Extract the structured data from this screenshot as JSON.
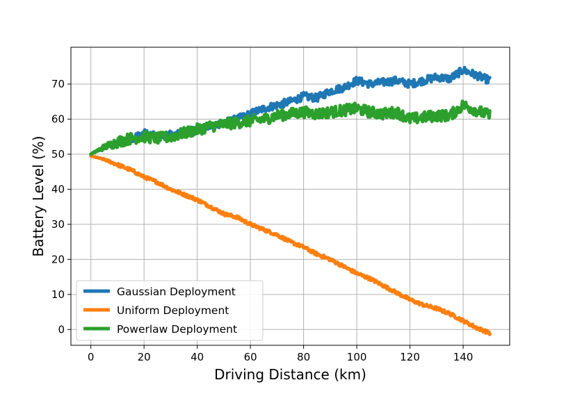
{
  "chart_data": {
    "type": "line",
    "title": "",
    "xlabel": "Driving Distance (km)",
    "ylabel": "Battery Level (%)",
    "xlim": [
      -7.5,
      157.5
    ],
    "ylim": [
      -4.5,
      80.5
    ],
    "xticks": [
      0,
      20,
      40,
      60,
      80,
      100,
      120,
      140
    ],
    "yticks": [
      0,
      10,
      20,
      30,
      40,
      50,
      60,
      70
    ],
    "grid": true,
    "legend_position": "lower-left",
    "series": [
      {
        "name": "Gaussian Deployment",
        "color": "#1f77b4",
        "x": [
          0,
          5,
          10,
          15,
          20,
          25,
          30,
          35,
          40,
          45,
          50,
          55,
          60,
          65,
          70,
          75,
          80,
          85,
          90,
          95,
          100,
          105,
          110,
          115,
          120,
          125,
          130,
          135,
          140,
          145,
          150
        ],
        "y": [
          50,
          52,
          53,
          54.5,
          56,
          55,
          55.5,
          56,
          57,
          58,
          59,
          60,
          61.5,
          63,
          64,
          65,
          66.5,
          66,
          68,
          69,
          71,
          70,
          70.5,
          71,
          70,
          71,
          72,
          71.5,
          74,
          72.5,
          71
        ]
      },
      {
        "name": "Uniform Deployment",
        "color": "#ff7f0e",
        "x": [
          0,
          5,
          10,
          15,
          20,
          25,
          30,
          35,
          40,
          45,
          50,
          55,
          60,
          65,
          70,
          75,
          80,
          85,
          90,
          95,
          100,
          105,
          110,
          115,
          120,
          125,
          130,
          135,
          140,
          145,
          150
        ],
        "y": [
          49.5,
          48.5,
          47,
          45.5,
          43.5,
          42,
          40,
          38.5,
          37,
          35,
          33,
          32,
          30,
          28.5,
          27,
          25,
          23.5,
          21.5,
          20,
          18,
          16,
          14.5,
          12.5,
          10.5,
          8.5,
          7,
          6,
          4.5,
          2.5,
          0.5,
          -1
        ]
      },
      {
        "name": "Powerlaw Deployment",
        "color": "#2ca02c",
        "x": [
          0,
          5,
          10,
          15,
          20,
          25,
          30,
          35,
          40,
          45,
          50,
          55,
          60,
          65,
          70,
          75,
          80,
          85,
          90,
          95,
          100,
          105,
          110,
          115,
          120,
          125,
          130,
          135,
          140,
          145,
          150
        ],
        "y": [
          50,
          52,
          53.5,
          54.5,
          55,
          54.5,
          55,
          56,
          57,
          58,
          58.5,
          59,
          59.5,
          60,
          61,
          61.5,
          62,
          61.5,
          62,
          62.5,
          63,
          62,
          61.5,
          62,
          60,
          60.5,
          61,
          61,
          64,
          62.5,
          61
        ]
      }
    ]
  }
}
